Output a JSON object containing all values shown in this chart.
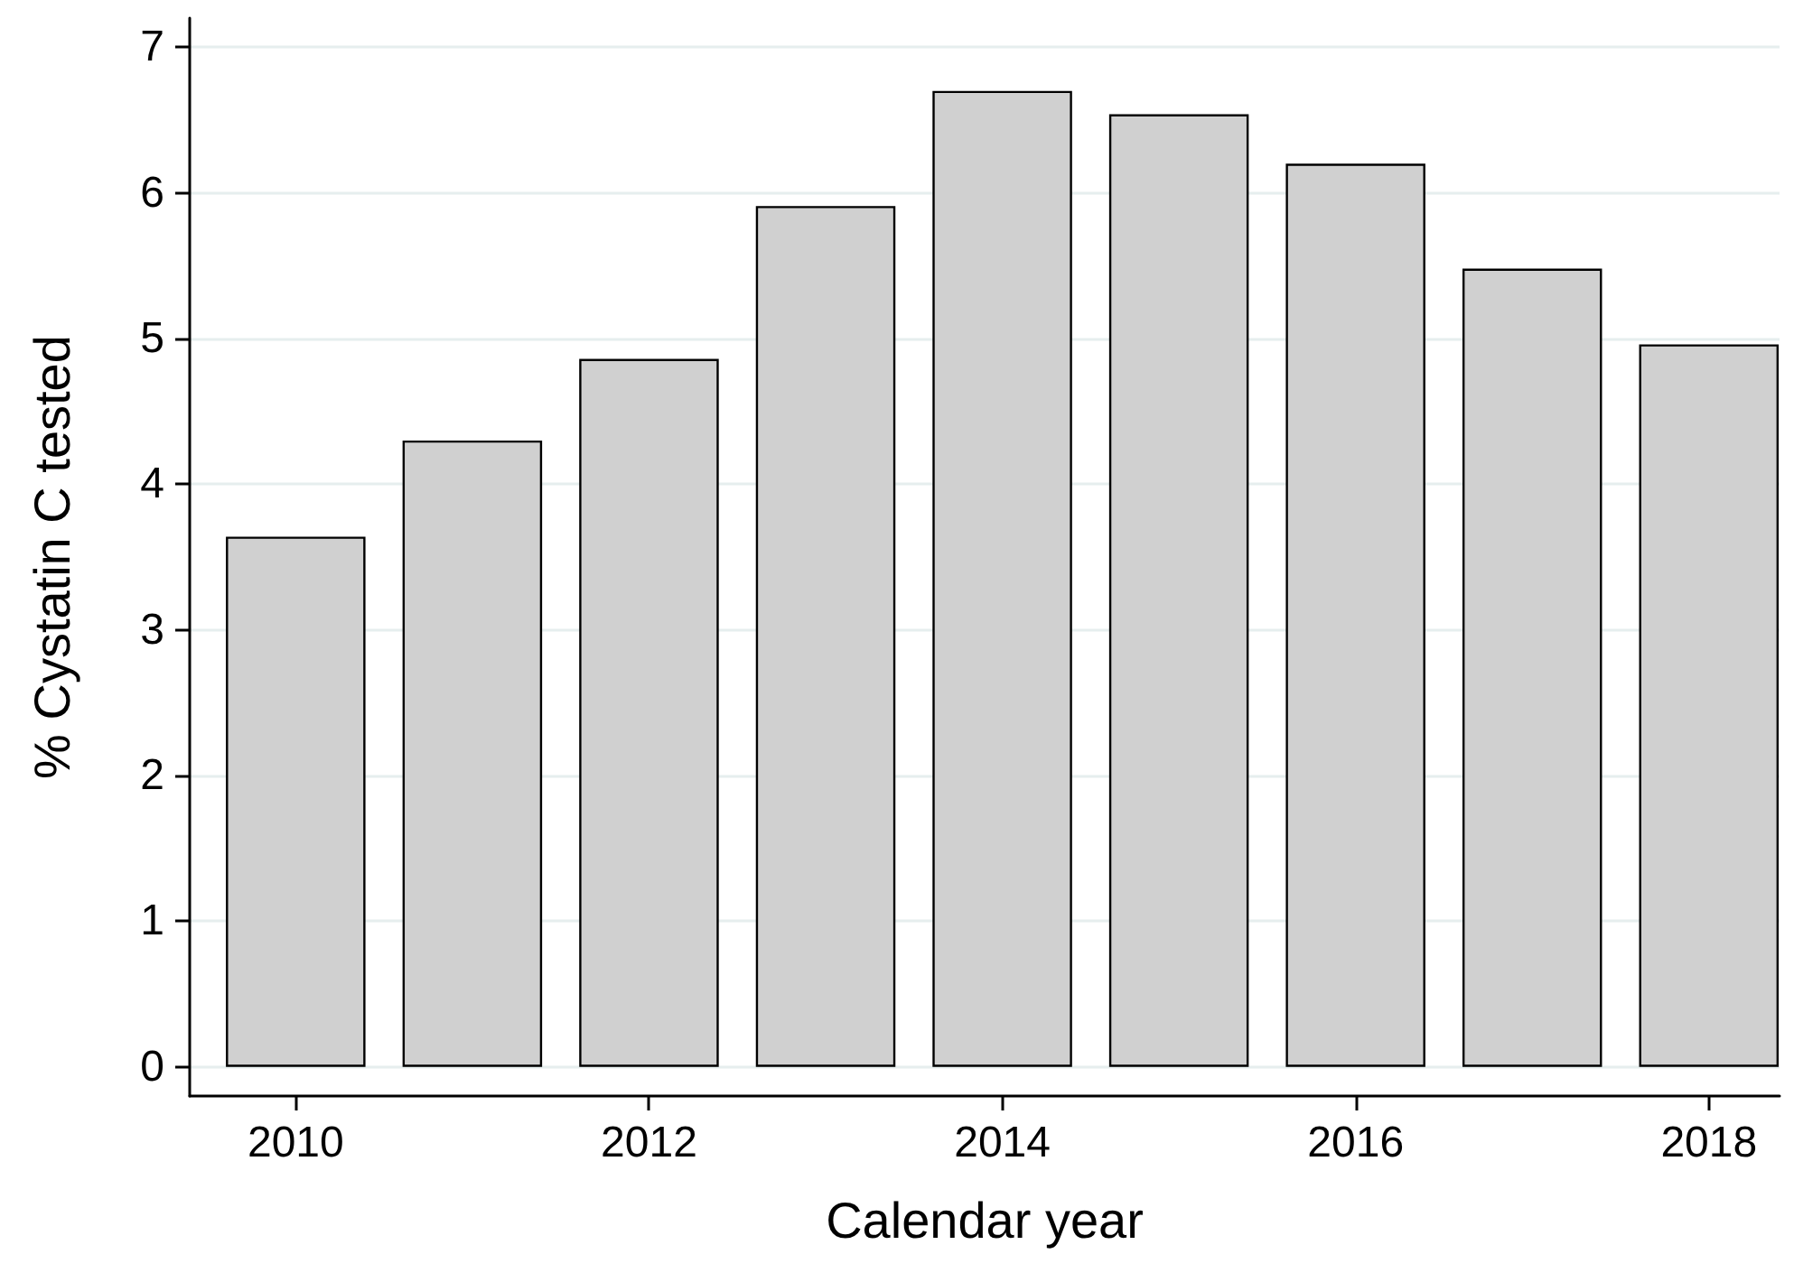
{
  "chart_data": {
    "type": "bar",
    "xlabel": "Calendar year",
    "ylabel": "% Cystatin C tested",
    "x": [
      2010,
      2011,
      2012,
      2013,
      2014,
      2015,
      2016,
      2017,
      2018
    ],
    "values": [
      3.64,
      4.3,
      4.86,
      5.91,
      6.7,
      6.54,
      6.2,
      5.48,
      4.96
    ],
    "color": "#d0d0d0",
    "xlim": [
      2009.4,
      2018.4
    ],
    "xticks": [
      2010,
      2012,
      2014,
      2016,
      2018
    ],
    "ylim": [
      -0.2,
      7.2
    ],
    "yticks": [
      0,
      1,
      2,
      3,
      4,
      5,
      6,
      7
    ],
    "grid": "y"
  }
}
